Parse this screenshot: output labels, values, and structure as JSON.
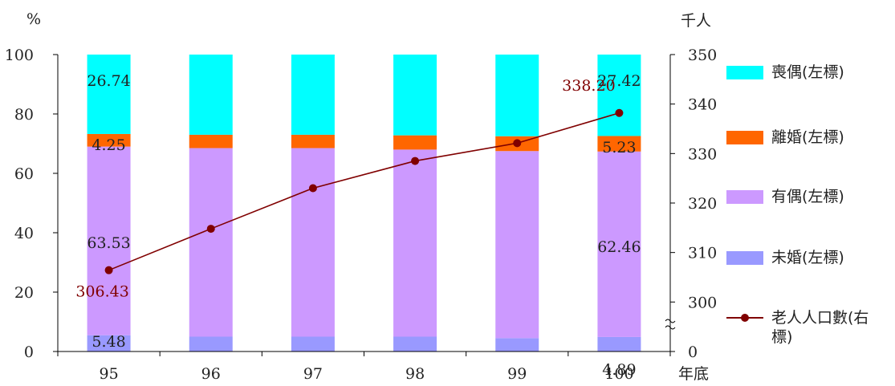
{
  "chart_data": {
    "type": "bar",
    "stacked": true,
    "categories": [
      "95",
      "96",
      "97",
      "98",
      "99",
      "100"
    ],
    "series": [
      {
        "name": "未婚(左標)",
        "color": "#9999ff",
        "values": [
          5.48,
          5.0,
          5.0,
          5.0,
          4.5,
          4.89
        ]
      },
      {
        "name": "有偶(左標)",
        "color": "#cc99ff",
        "values": [
          63.53,
          63.5,
          63.5,
          63.0,
          63.0,
          62.46
        ]
      },
      {
        "name": "離婚(左標)",
        "color": "#ff6600",
        "values": [
          4.25,
          4.5,
          4.5,
          4.8,
          5.0,
          5.23
        ]
      },
      {
        "name": "喪偶(左標)",
        "color": "#00ffff",
        "values": [
          26.74,
          27.0,
          27.0,
          27.2,
          27.5,
          27.42
        ]
      }
    ],
    "line_series": {
      "name": "老人人口數(右標)",
      "color": "#800000",
      "axis": "right",
      "values": [
        306.43,
        314.8,
        323.0,
        328.5,
        332.1,
        338.2
      ]
    },
    "labels": {
      "bars": [
        {
          "cat": 0,
          "series": 3,
          "text": "26.74"
        },
        {
          "cat": 0,
          "series": 2,
          "text": "4.25"
        },
        {
          "cat": 0,
          "series": 1,
          "text": "63.53"
        },
        {
          "cat": 0,
          "series": 0,
          "text": "5.48"
        },
        {
          "cat": 5,
          "series": 3,
          "text": "27.42"
        },
        {
          "cat": 5,
          "series": 2,
          "text": "5.23"
        },
        {
          "cat": 5,
          "series": 1,
          "text": "62.46"
        },
        {
          "cat": 5,
          "series": 0,
          "text": "4.89"
        }
      ],
      "line": [
        {
          "cat": 0,
          "text": "306.43"
        },
        {
          "cat": 5,
          "text": "338.20"
        }
      ]
    },
    "left_axis": {
      "unit": "%",
      "ylim": [
        0,
        100
      ],
      "ticks": [
        "0",
        "20",
        "40",
        "60",
        "80",
        "100"
      ]
    },
    "right_axis": {
      "unit": "千人",
      "ylim": [
        290,
        350
      ],
      "ticks": [
        "0",
        "300",
        "310",
        "320",
        "330",
        "340",
        "350"
      ],
      "broken": true
    },
    "xlabel": "年底",
    "grid": false,
    "legend": "right"
  }
}
